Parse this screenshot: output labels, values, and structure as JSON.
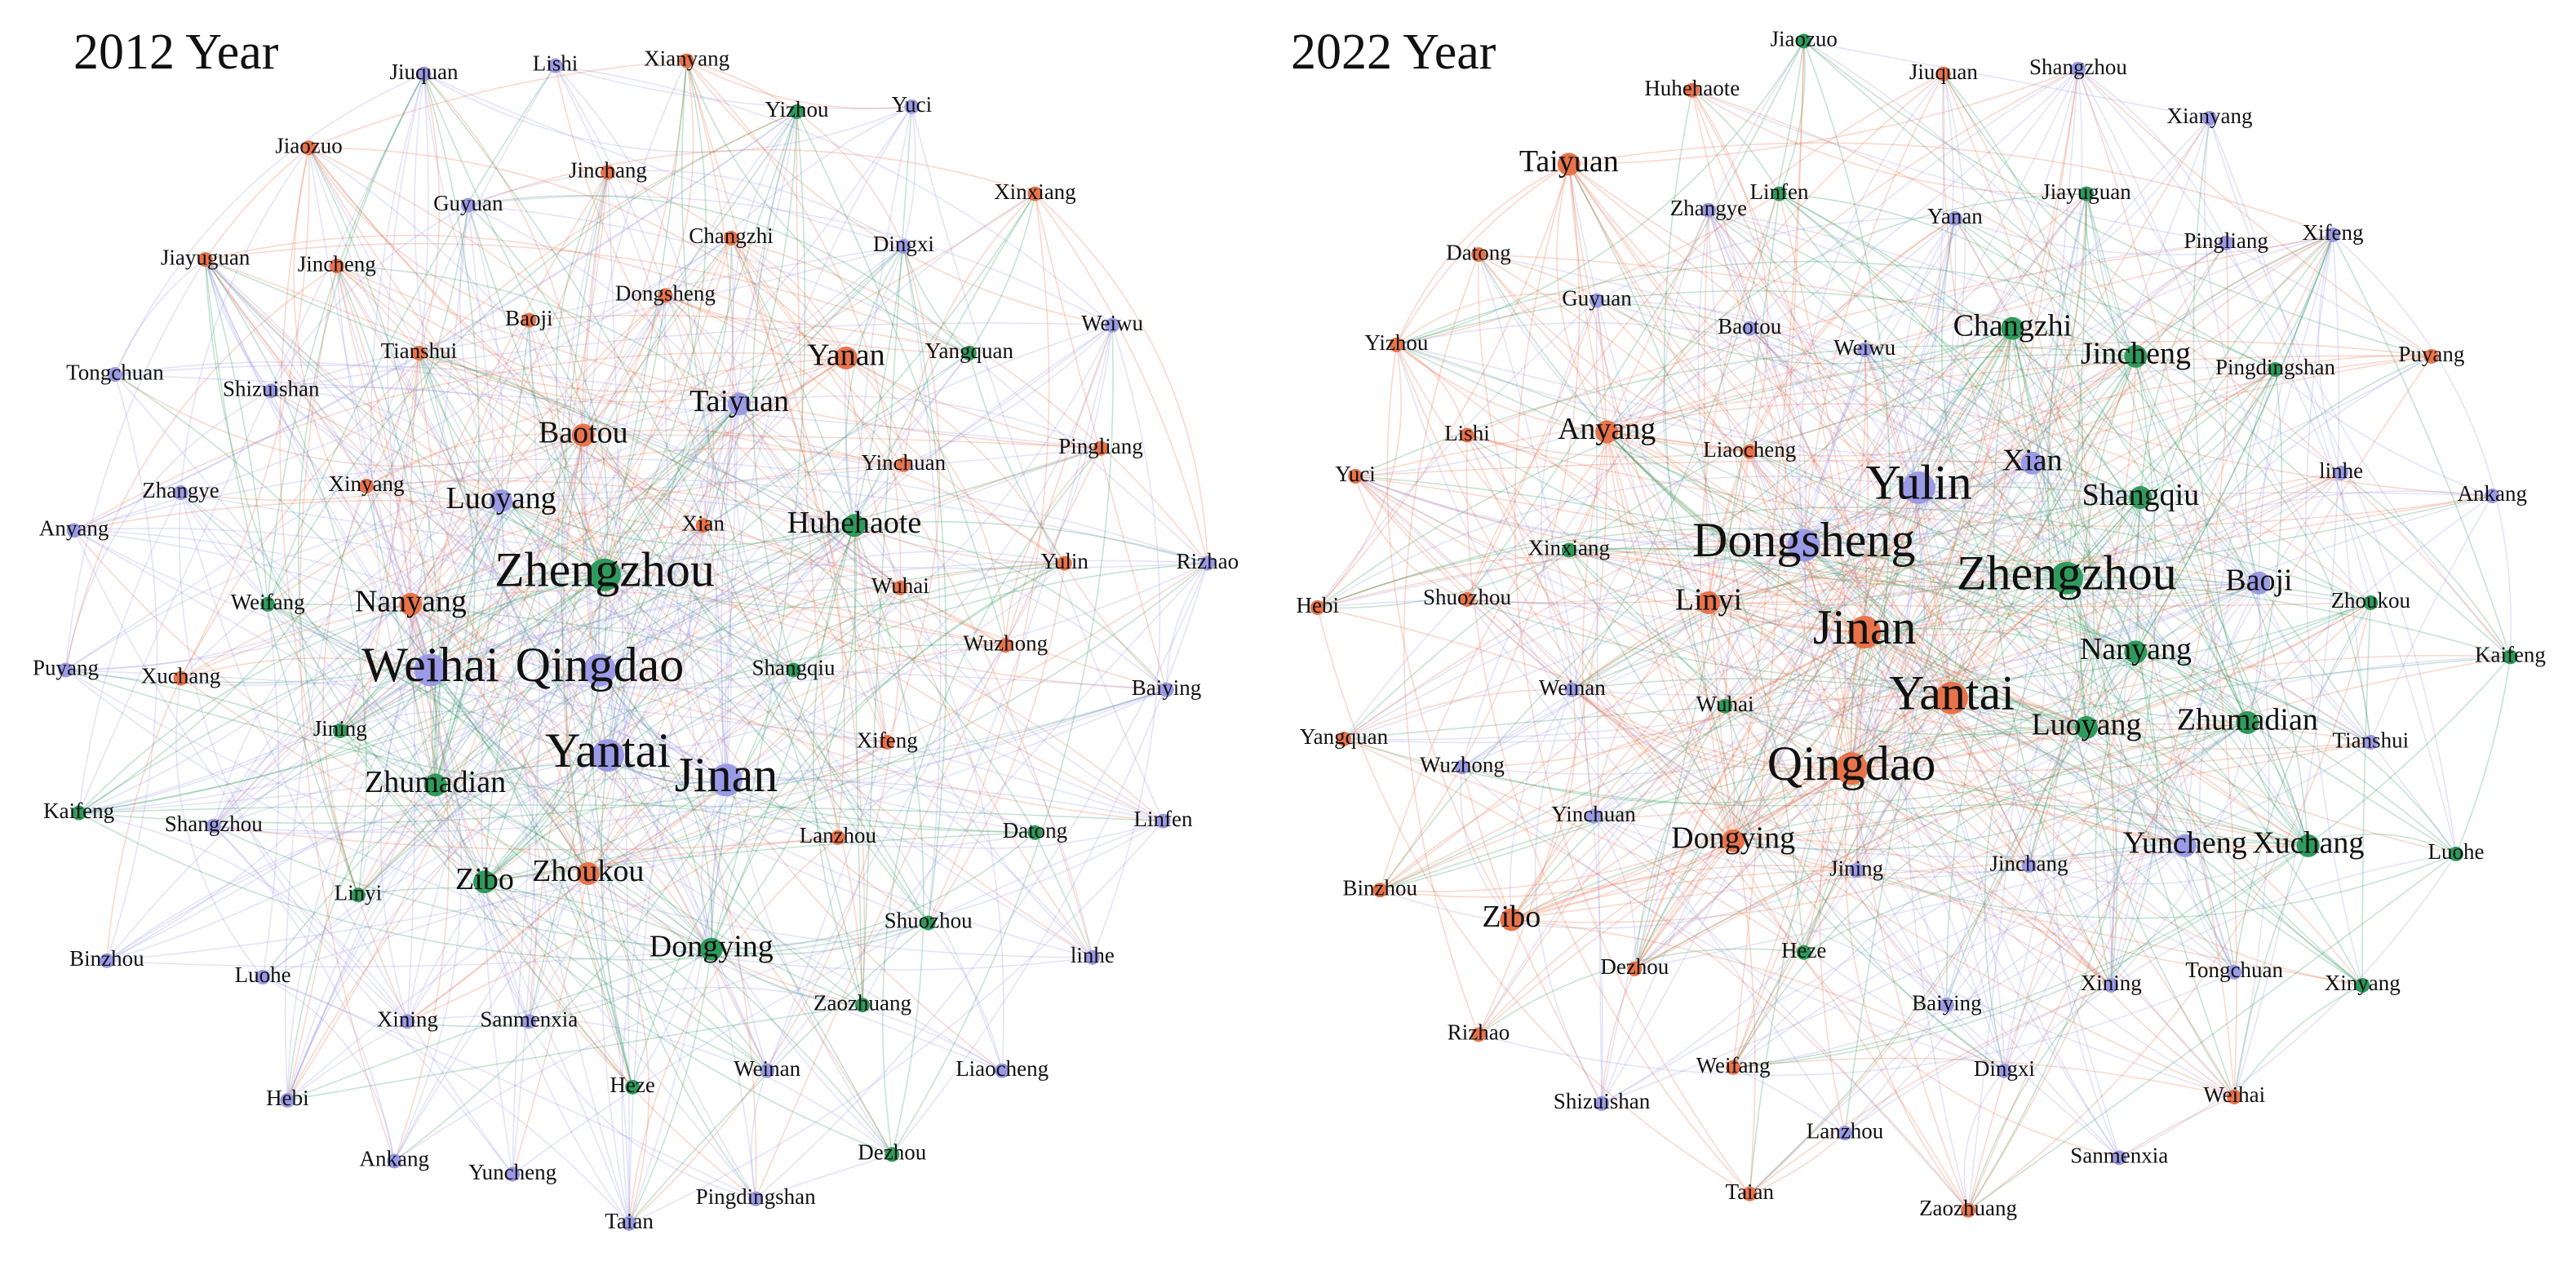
{
  "panels": [
    {
      "title": "2012 Year",
      "nodes": [
        {
          "label": "Jiuquan",
          "color": "#9a9ae6"
        },
        {
          "label": "Lishi",
          "color": "#9a9ae6"
        },
        {
          "label": "Xianyang",
          "color": "#e8734a"
        },
        {
          "label": "Jiaozuo",
          "color": "#e8734a"
        },
        {
          "label": "Yizhou",
          "color": "#2f9a5c"
        },
        {
          "label": "Yuci",
          "color": "#9a9ae6"
        },
        {
          "label": "Xinxiang",
          "color": "#e8734a"
        },
        {
          "label": "Jinchang",
          "color": "#e8734a"
        },
        {
          "label": "Guyuan",
          "color": "#9a9ae6"
        },
        {
          "label": "Changzhi",
          "color": "#e8734a"
        },
        {
          "label": "Dingxi",
          "color": "#9a9ae6"
        },
        {
          "label": "Jiayuguan",
          "color": "#e8734a"
        },
        {
          "label": "Jincheng",
          "color": "#e8734a"
        },
        {
          "label": "Baoji",
          "color": "#e8734a"
        },
        {
          "label": "Dongsheng",
          "color": "#e8734a"
        },
        {
          "label": "Weiwu",
          "color": "#9a9ae6"
        },
        {
          "label": "Tianshui",
          "color": "#e8734a"
        },
        {
          "label": "Yanan",
          "color": "#e8734a"
        },
        {
          "label": "Yangquan",
          "color": "#2f9a5c"
        },
        {
          "label": "Tongchuan",
          "color": "#9a9ae6"
        },
        {
          "label": "Shizuishan",
          "color": "#9a9ae6"
        },
        {
          "label": "Taiyuan",
          "color": "#9a9ae6"
        },
        {
          "label": "Baotou",
          "color": "#e8734a"
        },
        {
          "label": "Pingliang",
          "color": "#e8734a"
        },
        {
          "label": "Yinchuan",
          "color": "#e8734a"
        },
        {
          "label": "Zhangye",
          "color": "#9a9ae6"
        },
        {
          "label": "Xinyang",
          "color": "#e8734a"
        },
        {
          "label": "Luoyang",
          "color": "#9a9ae6"
        },
        {
          "label": "Xian",
          "color": "#e8734a"
        },
        {
          "label": "Huhehaote",
          "color": "#2f9a5c"
        },
        {
          "label": "Anyang",
          "color": "#9a9ae6"
        },
        {
          "label": "Zhengzhou",
          "color": "#2f9a5c"
        },
        {
          "label": "Yulin",
          "color": "#e8734a"
        },
        {
          "label": "Rizhao",
          "color": "#9a9ae6"
        },
        {
          "label": "Weifang",
          "color": "#2f9a5c"
        },
        {
          "label": "Nanyang",
          "color": "#e8734a"
        },
        {
          "label": "Wuhai",
          "color": "#e8734a"
        },
        {
          "label": "Puyang",
          "color": "#9a9ae6"
        },
        {
          "label": "Weihai",
          "color": "#9a9ae6"
        },
        {
          "label": "Qingdao",
          "color": "#9a9ae6"
        },
        {
          "label": "Shangqiu",
          "color": "#2f9a5c"
        },
        {
          "label": "Xuchang",
          "color": "#e8734a"
        },
        {
          "label": "Wuzhong",
          "color": "#e8734a"
        },
        {
          "label": "Baiying",
          "color": "#9a9ae6"
        },
        {
          "label": "Jining",
          "color": "#2f9a5c"
        },
        {
          "label": "Xifeng",
          "color": "#e8734a"
        },
        {
          "label": "Yantai",
          "color": "#9a9ae6"
        },
        {
          "label": "Jinan",
          "color": "#9a9ae6"
        },
        {
          "label": "Zhumadian",
          "color": "#2f9a5c"
        },
        {
          "label": "Kaifeng",
          "color": "#2f9a5c"
        },
        {
          "label": "Shangzhou",
          "color": "#9a9ae6"
        },
        {
          "label": "Lanzhou",
          "color": "#e8734a"
        },
        {
          "label": "Datong",
          "color": "#2f9a5c"
        },
        {
          "label": "Linfen",
          "color": "#9a9ae6"
        },
        {
          "label": "Zhoukou",
          "color": "#e8734a"
        },
        {
          "label": "Zibo",
          "color": "#2f9a5c"
        },
        {
          "label": "Linyi",
          "color": "#2f9a5c"
        },
        {
          "label": "Shuozhou",
          "color": "#2f9a5c"
        },
        {
          "label": "Dongying",
          "color": "#2f9a5c"
        },
        {
          "label": "Binzhou",
          "color": "#9a9ae6"
        },
        {
          "label": "Luohe",
          "color": "#9a9ae6"
        },
        {
          "label": "linhe",
          "color": "#9a9ae6"
        },
        {
          "label": "Zaozhuang",
          "color": "#2f9a5c"
        },
        {
          "label": "Xining",
          "color": "#9a9ae6"
        },
        {
          "label": "Sanmenxia",
          "color": "#9a9ae6"
        },
        {
          "label": "Weinan",
          "color": "#9a9ae6"
        },
        {
          "label": "Liaocheng",
          "color": "#9a9ae6"
        },
        {
          "label": "Heze",
          "color": "#2f9a5c"
        },
        {
          "label": "Hebi",
          "color": "#9a9ae6"
        },
        {
          "label": "Ankang",
          "color": "#9a9ae6"
        },
        {
          "label": "Dezhou",
          "color": "#2f9a5c"
        },
        {
          "label": "Yuncheng",
          "color": "#9a9ae6"
        },
        {
          "label": "Pingdingshan",
          "color": "#9a9ae6"
        },
        {
          "label": "Taian",
          "color": "#9a9ae6"
        }
      ]
    },
    {
      "title": "2022 Year",
      "nodes": [
        {
          "label": "Jiaozuo",
          "color": "#2f9a5c"
        },
        {
          "label": "Jiuquan",
          "color": "#e8734a"
        },
        {
          "label": "Shangzhou",
          "color": "#9a9ae6"
        },
        {
          "label": "Huhehaote",
          "color": "#e8734a"
        },
        {
          "label": "Xianyang",
          "color": "#9a9ae6"
        },
        {
          "label": "Taiyuan",
          "color": "#e8734a"
        },
        {
          "label": "Linfen",
          "color": "#2f9a5c"
        },
        {
          "label": "Jiayuguan",
          "color": "#2f9a5c"
        },
        {
          "label": "Zhangye",
          "color": "#9a9ae6"
        },
        {
          "label": "Yanan",
          "color": "#9a9ae6"
        },
        {
          "label": "Pingliang",
          "color": "#9a9ae6"
        },
        {
          "label": "Xifeng",
          "color": "#9a9ae6"
        },
        {
          "label": "Datong",
          "color": "#e8734a"
        },
        {
          "label": "Guyuan",
          "color": "#9a9ae6"
        },
        {
          "label": "Baotou",
          "color": "#9a9ae6"
        },
        {
          "label": "Weiwu",
          "color": "#9a9ae6"
        },
        {
          "label": "Changzhi",
          "color": "#2f9a5c"
        },
        {
          "label": "Yizhou",
          "color": "#e8734a"
        },
        {
          "label": "Jincheng",
          "color": "#2f9a5c"
        },
        {
          "label": "Pingdingshan",
          "color": "#2f9a5c"
        },
        {
          "label": "Puyang",
          "color": "#e8734a"
        },
        {
          "label": "Lishi",
          "color": "#e8734a"
        },
        {
          "label": "Anyang",
          "color": "#e8734a"
        },
        {
          "label": "Liaocheng",
          "color": "#e8734a"
        },
        {
          "label": "Xian",
          "color": "#9a9ae6"
        },
        {
          "label": "Yulin",
          "color": "#9a9ae6"
        },
        {
          "label": "Shangqiu",
          "color": "#2f9a5c"
        },
        {
          "label": "linhe",
          "color": "#9a9ae6"
        },
        {
          "label": "Ankang",
          "color": "#9a9ae6"
        },
        {
          "label": "Yuci",
          "color": "#e8734a"
        },
        {
          "label": "Dongsheng",
          "color": "#9a9ae6"
        },
        {
          "label": "Xinxiang",
          "color": "#2f9a5c"
        },
        {
          "label": "Zhengzhou",
          "color": "#2f9a5c"
        },
        {
          "label": "Baoji",
          "color": "#9a9ae6"
        },
        {
          "label": "Zhoukou",
          "color": "#2f9a5c"
        },
        {
          "label": "Hebi",
          "color": "#e8734a"
        },
        {
          "label": "Shuozhou",
          "color": "#e8734a"
        },
        {
          "label": "Linyi",
          "color": "#e8734a"
        },
        {
          "label": "Jinan",
          "color": "#e8734a"
        },
        {
          "label": "Nanyang",
          "color": "#2f9a5c"
        },
        {
          "label": "Kaifeng",
          "color": "#2f9a5c"
        },
        {
          "label": "Weinan",
          "color": "#9a9ae6"
        },
        {
          "label": "Wuhai",
          "color": "#2f9a5c"
        },
        {
          "label": "Yantai",
          "color": "#e8734a"
        },
        {
          "label": "Luoyang",
          "color": "#2f9a5c"
        },
        {
          "label": "Zhumadian",
          "color": "#2f9a5c"
        },
        {
          "label": "Tianshui",
          "color": "#9a9ae6"
        },
        {
          "label": "Yangquan",
          "color": "#e8734a"
        },
        {
          "label": "Qingdao",
          "color": "#e8734a"
        },
        {
          "label": "Wuzhong",
          "color": "#9a9ae6"
        },
        {
          "label": "Yinchuan",
          "color": "#9a9ae6"
        },
        {
          "label": "Dongying",
          "color": "#e8734a"
        },
        {
          "label": "Jining",
          "color": "#9a9ae6"
        },
        {
          "label": "Jinchang",
          "color": "#9a9ae6"
        },
        {
          "label": "Yuncheng",
          "color": "#9a9ae6"
        },
        {
          "label": "Xuchang",
          "color": "#2f9a5c"
        },
        {
          "label": "Luohe",
          "color": "#2f9a5c"
        },
        {
          "label": "Binzhou",
          "color": "#e8734a"
        },
        {
          "label": "Zibo",
          "color": "#e8734a"
        },
        {
          "label": "Heze",
          "color": "#2f9a5c"
        },
        {
          "label": "Dezhou",
          "color": "#e8734a"
        },
        {
          "label": "Baiying",
          "color": "#9a9ae6"
        },
        {
          "label": "Xining",
          "color": "#9a9ae6"
        },
        {
          "label": "Tongchuan",
          "color": "#9a9ae6"
        },
        {
          "label": "Xinyang",
          "color": "#2f9a5c"
        },
        {
          "label": "Rizhao",
          "color": "#e8734a"
        },
        {
          "label": "Weifang",
          "color": "#e8734a"
        },
        {
          "label": "Dingxi",
          "color": "#9a9ae6"
        },
        {
          "label": "Weihai",
          "color": "#e8734a"
        },
        {
          "label": "Shizuishan",
          "color": "#9a9ae6"
        },
        {
          "label": "Lanzhou",
          "color": "#9a9ae6"
        },
        {
          "label": "Sanmenxia",
          "color": "#9a9ae6"
        },
        {
          "label": "Taian",
          "color": "#e8734a"
        },
        {
          "label": "Zaozhuang",
          "color": "#e8734a"
        }
      ]
    }
  ]
}
